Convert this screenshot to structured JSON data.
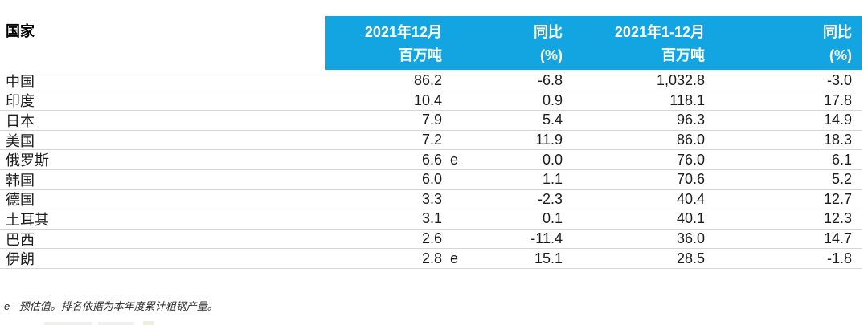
{
  "table": {
    "country_header": "国家",
    "columns": [
      {
        "line1": "2021年12月",
        "line2": "百万吨"
      },
      {
        "line1": "同比",
        "line2": "(%)"
      },
      {
        "line1": "2021年1-12月",
        "line2": "百万吨"
      },
      {
        "line1": "同比",
        "line2": "(%)"
      }
    ],
    "rows": [
      {
        "country": "中国",
        "dec_mt": "86.2",
        "flag": "",
        "dec_yoy": "-6.8",
        "ytd_mt": "1,032.8",
        "ytd_yoy": "-3.0"
      },
      {
        "country": "印度",
        "dec_mt": "10.4",
        "flag": "",
        "dec_yoy": "0.9",
        "ytd_mt": "118.1",
        "ytd_yoy": "17.8"
      },
      {
        "country": "日本",
        "dec_mt": "7.9",
        "flag": "",
        "dec_yoy": "5.4",
        "ytd_mt": "96.3",
        "ytd_yoy": "14.9"
      },
      {
        "country": "美国",
        "dec_mt": "7.2",
        "flag": "",
        "dec_yoy": "11.9",
        "ytd_mt": "86.0",
        "ytd_yoy": "18.3"
      },
      {
        "country": "俄罗斯",
        "dec_mt": "6.6",
        "flag": "e",
        "dec_yoy": "0.0",
        "ytd_mt": "76.0",
        "ytd_yoy": "6.1"
      },
      {
        "country": "韩国",
        "dec_mt": "6.0",
        "flag": "",
        "dec_yoy": "1.1",
        "ytd_mt": "70.6",
        "ytd_yoy": "5.2"
      },
      {
        "country": "德国",
        "dec_mt": "3.3",
        "flag": "",
        "dec_yoy": "-2.3",
        "ytd_mt": "40.4",
        "ytd_yoy": "12.7"
      },
      {
        "country": "土耳其",
        "dec_mt": "3.1",
        "flag": "",
        "dec_yoy": "0.1",
        "ytd_mt": "40.1",
        "ytd_yoy": "12.3"
      },
      {
        "country": "巴西",
        "dec_mt": "2.6",
        "flag": "",
        "dec_yoy": "-11.4",
        "ytd_mt": "36.0",
        "ytd_yoy": "14.7"
      },
      {
        "country": "伊朗",
        "dec_mt": "2.8",
        "flag": "e",
        "dec_yoy": "15.1",
        "ytd_mt": "28.5",
        "ytd_yoy": "-1.8"
      }
    ]
  },
  "footnote": "e - 预估值。排名依据为本年度累计粗钢产量。",
  "colors": {
    "header_bg": "#12A5E2",
    "header_text": "#FFFFFF",
    "divider": "#D5D5D5",
    "text": "#1C1C1C"
  },
  "chart_data": {
    "type": "table",
    "columns": [
      "国家",
      "2021年12月 百万吨",
      "同比 (%)",
      "2021年1-12月 百万吨",
      "同比 (%)"
    ],
    "rows": [
      [
        "中国",
        "86.2",
        -6.8,
        "1,032.8",
        -3.0
      ],
      [
        "印度",
        "10.4",
        0.9,
        "118.1",
        17.8
      ],
      [
        "日本",
        "7.9",
        5.4,
        "96.3",
        14.9
      ],
      [
        "美国",
        "7.2",
        11.9,
        "86.0",
        18.3
      ],
      [
        "俄罗斯",
        "6.6 e",
        0.0,
        "76.0",
        6.1
      ],
      [
        "韩国",
        "6.0",
        1.1,
        "70.6",
        5.2
      ],
      [
        "德国",
        "3.3",
        -2.3,
        "40.4",
        12.7
      ],
      [
        "土耳其",
        "3.1",
        0.1,
        "40.1",
        12.3
      ],
      [
        "巴西",
        "2.6",
        -11.4,
        "36.0",
        14.7
      ],
      [
        "伊朗",
        "2.8 e",
        15.1,
        "28.5",
        -1.8
      ]
    ],
    "footnote": "e - 预估值。排名依据为本年度累计粗钢产量。",
    "layout": "header band cyan, numeric columns right-aligned, thin gray row dividers"
  }
}
